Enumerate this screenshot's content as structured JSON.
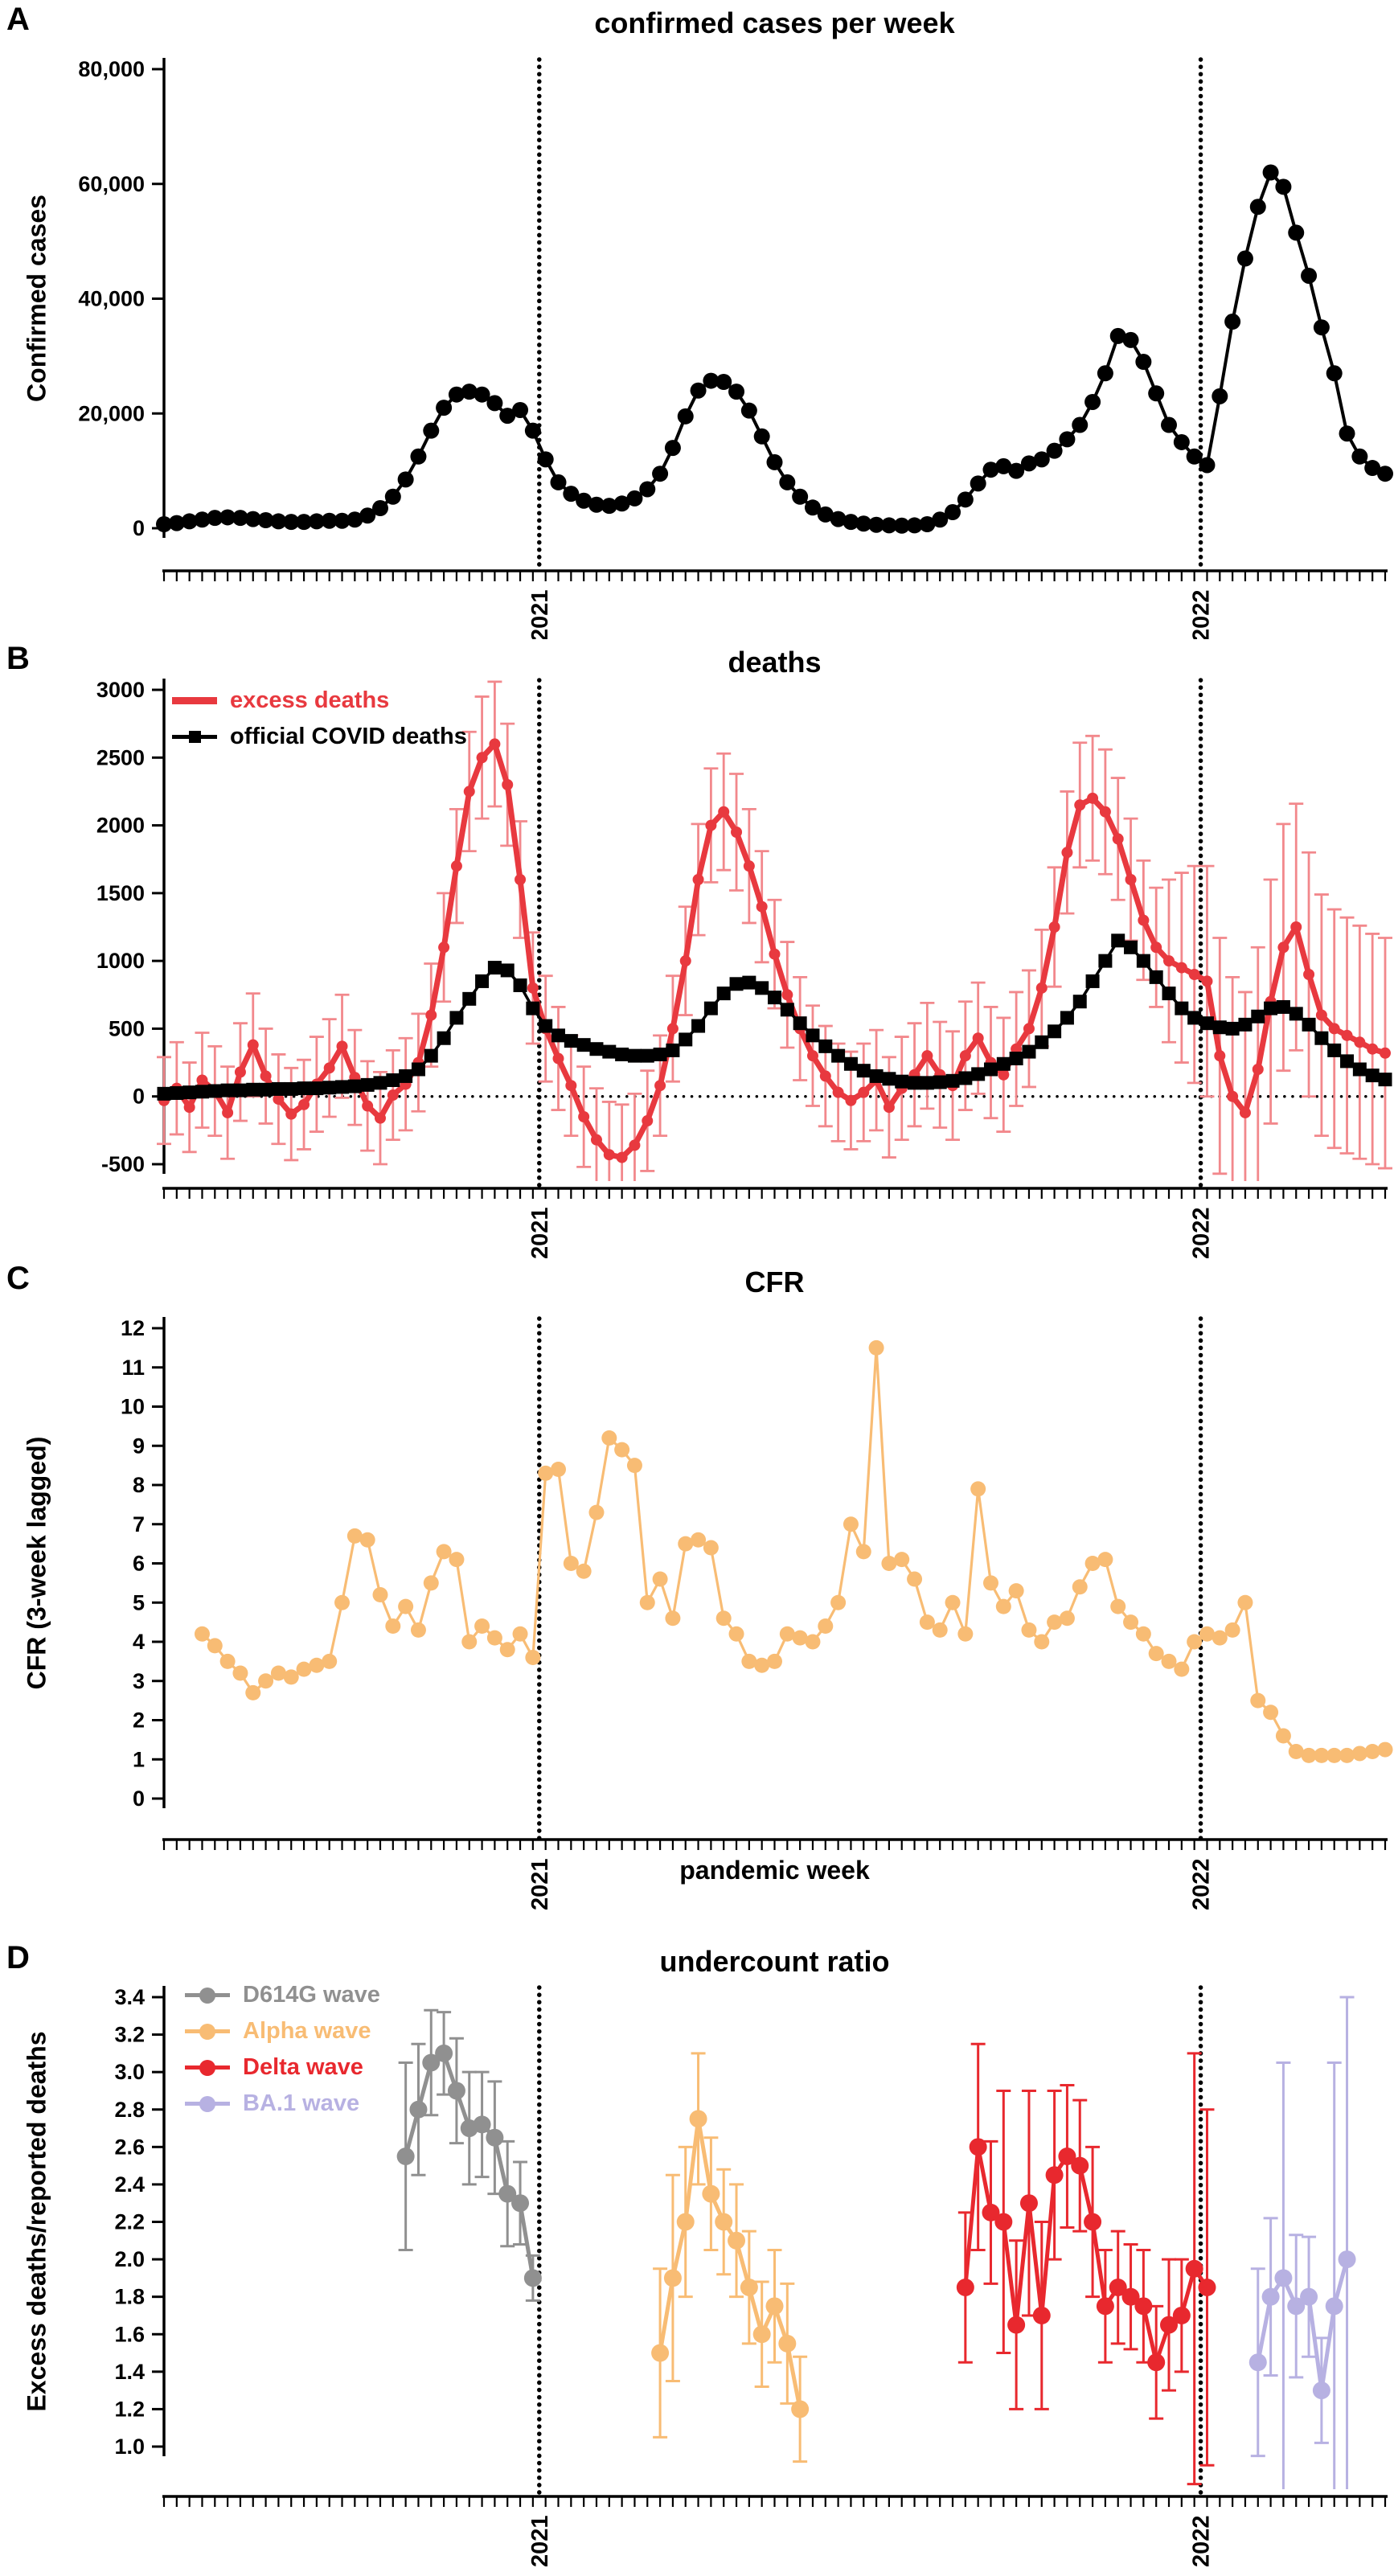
{
  "x_axis": {
    "weeks_total": 97,
    "axis_unit": "pandemic week",
    "year_lines": [
      {
        "week": 30.5,
        "label": "2021"
      },
      {
        "week": 82.5,
        "label": "2022"
      }
    ]
  },
  "chart_data": [
    {
      "panel": "A",
      "type": "line",
      "title": "confirmed cases per week",
      "ylabel": "Confirmed cases",
      "ylim": [
        0,
        80000
      ],
      "yticks": [
        0,
        20000,
        40000,
        60000,
        80000
      ],
      "ytick_labels": [
        "0",
        "20,000",
        "40,000",
        "60,000",
        "80,000"
      ],
      "x_start": 1,
      "series": [
        {
          "name": "confirmed cases",
          "color": "#000000",
          "marker": "circle",
          "values": [
            700,
            900,
            1200,
            1500,
            1800,
            1900,
            1800,
            1600,
            1400,
            1200,
            1100,
            1100,
            1200,
            1300,
            1300,
            1500,
            2200,
            3500,
            5500,
            8500,
            12500,
            17000,
            21000,
            23300,
            23800,
            23300,
            21800,
            19600,
            20600,
            17000,
            12000,
            8000,
            6000,
            4800,
            4100,
            3900,
            4300,
            5200,
            6800,
            9500,
            14000,
            19500,
            24000,
            25700,
            25500,
            23800,
            20500,
            16000,
            11500,
            8000,
            5500,
            3600,
            2400,
            1600,
            1100,
            800,
            600,
            500,
            450,
            500,
            700,
            1500,
            2800,
            5000,
            7800,
            10200,
            10800,
            10000,
            11300,
            12000,
            13500,
            15500,
            18000,
            22000,
            27000,
            33500,
            32800,
            29000,
            23500,
            18000,
            15000,
            12500,
            11000,
            23000,
            36000,
            47000,
            56000,
            62000,
            59500,
            51500,
            44000,
            35000,
            27000,
            16500,
            12500,
            10500,
            9500
          ]
        }
      ]
    },
    {
      "panel": "B",
      "type": "line",
      "title": "deaths",
      "ylabel": "",
      "ylim": [
        -500,
        3000
      ],
      "yticks": [
        -500,
        0,
        500,
        1000,
        1500,
        2000,
        2500,
        3000
      ],
      "ytick_labels": [
        "-500",
        "0",
        "500",
        "1000",
        "1500",
        "2000",
        "2500",
        "3000"
      ],
      "hline": 0,
      "x_start": 1,
      "series": [
        {
          "name": "excess deaths",
          "color": "#e8393f",
          "error_color": "#f2888c",
          "marker": "circle",
          "values": [
            -30,
            60,
            -80,
            120,
            40,
            -120,
            180,
            380,
            150,
            -20,
            -130,
            -60,
            90,
            210,
            370,
            140,
            -70,
            -160,
            10,
            90,
            250,
            600,
            1100,
            1700,
            2250,
            2500,
            2600,
            2300,
            1600,
            800,
            500,
            280,
            80,
            -150,
            -320,
            -430,
            -450,
            -360,
            -180,
            80,
            500,
            1000,
            1600,
            2000,
            2100,
            1950,
            1700,
            1400,
            1050,
            750,
            500,
            300,
            150,
            30,
            -30,
            30,
            120,
            -80,
            60,
            160,
            300,
            160,
            80,
            300,
            430,
            250,
            160,
            350,
            500,
            800,
            1250,
            1800,
            2150,
            2200,
            2100,
            1900,
            1600,
            1300,
            1100,
            1000,
            950,
            900,
            850,
            300,
            0,
            -120,
            200,
            700,
            1100,
            1250,
            900,
            600,
            500,
            450,
            400,
            350,
            320
          ],
          "errors": [
            320,
            340,
            330,
            350,
            330,
            340,
            360,
            380,
            350,
            330,
            340,
            330,
            350,
            360,
            380,
            350,
            330,
            340,
            330,
            340,
            360,
            380,
            400,
            420,
            440,
            450,
            460,
            450,
            430,
            410,
            390,
            380,
            370,
            370,
            380,
            390,
            390,
            380,
            370,
            370,
            390,
            400,
            410,
            420,
            430,
            430,
            420,
            410,
            400,
            390,
            380,
            370,
            370,
            360,
            360,
            360,
            370,
            370,
            380,
            380,
            390,
            390,
            400,
            400,
            410,
            410,
            420,
            420,
            430,
            430,
            440,
            450,
            460,
            460,
            460,
            450,
            450,
            440,
            440,
            600,
            700,
            800,
            850,
            870,
            880,
            890,
            900,
            900,
            910,
            910,
            900,
            890,
            880,
            870,
            860,
            850,
            850
          ]
        },
        {
          "name": "official COVID deaths",
          "color": "#000000",
          "marker": "square",
          "values": [
            20,
            25,
            30,
            35,
            40,
            45,
            45,
            50,
            50,
            55,
            55,
            60,
            60,
            65,
            70,
            75,
            85,
            100,
            120,
            150,
            200,
            300,
            430,
            580,
            720,
            850,
            950,
            930,
            820,
            650,
            520,
            450,
            410,
            380,
            350,
            330,
            310,
            300,
            300,
            310,
            340,
            420,
            520,
            650,
            760,
            830,
            840,
            800,
            730,
            640,
            540,
            450,
            370,
            300,
            240,
            190,
            150,
            130,
            110,
            100,
            100,
            105,
            115,
            135,
            165,
            200,
            240,
            280,
            330,
            400,
            480,
            580,
            700,
            850,
            1000,
            1150,
            1100,
            1000,
            880,
            760,
            650,
            580,
            540,
            510,
            500,
            530,
            590,
            650,
            660,
            610,
            530,
            430,
            340,
            260,
            200,
            155,
            125
          ]
        }
      ]
    },
    {
      "panel": "C",
      "type": "line",
      "title": "CFR",
      "ylabel": "CFR (3-week lagged)",
      "xlabel": "pandemic week",
      "ylim": [
        0,
        12
      ],
      "yticks": [
        0,
        1,
        2,
        3,
        4,
        5,
        6,
        7,
        8,
        9,
        10,
        11,
        12
      ],
      "ytick_labels": [
        "0",
        "1",
        "2",
        "3",
        "4",
        "5",
        "6",
        "7",
        "8",
        "9",
        "10",
        "11",
        "12"
      ],
      "x_start": 4,
      "series": [
        {
          "name": "CFR",
          "color": "#f8bc74",
          "marker": "circle",
          "values": [
            4.2,
            3.9,
            3.5,
            3.2,
            2.7,
            3.0,
            3.2,
            3.1,
            3.3,
            3.4,
            3.5,
            5.0,
            6.7,
            6.6,
            5.2,
            4.4,
            4.9,
            4.3,
            5.5,
            6.3,
            6.1,
            4.0,
            4.4,
            4.1,
            3.8,
            4.2,
            3.6,
            8.3,
            8.4,
            6.0,
            5.8,
            7.3,
            9.2,
            8.9,
            8.5,
            5.0,
            5.6,
            4.6,
            6.5,
            6.6,
            6.4,
            4.6,
            4.2,
            3.5,
            3.4,
            3.5,
            4.2,
            4.1,
            4.0,
            4.4,
            5.0,
            7.0,
            6.3,
            11.5,
            6.0,
            6.1,
            5.6,
            4.5,
            4.3,
            5.0,
            4.2,
            7.9,
            5.5,
            4.9,
            5.3,
            4.3,
            4.0,
            4.5,
            4.6,
            5.4,
            6.0,
            6.1,
            4.9,
            4.5,
            4.2,
            3.7,
            3.5,
            3.3,
            4.0,
            4.2,
            4.1,
            4.3,
            5.0,
            2.5,
            2.2,
            1.6,
            1.2,
            1.1,
            1.1,
            1.1,
            1.1,
            1.15,
            1.2,
            1.25
          ]
        }
      ]
    },
    {
      "panel": "D",
      "type": "line",
      "title": "undercount ratio",
      "ylabel": "Excess deaths/reported deaths",
      "ylim": [
        1.0,
        3.4
      ],
      "yticks": [
        1.0,
        1.2,
        1.4,
        1.6,
        1.8,
        2.0,
        2.2,
        2.4,
        2.6,
        2.8,
        3.0,
        3.2,
        3.4
      ],
      "ytick_labels": [
        "1.0",
        "1.2",
        "1.4",
        "1.6",
        "1.8",
        "2.0",
        "2.2",
        "2.4",
        "2.6",
        "2.8",
        "3.0",
        "3.2",
        "3.4"
      ],
      "series": [
        {
          "name": "D614G wave",
          "color": "#909090",
          "marker": "circle",
          "x_start": 20,
          "values": [
            2.55,
            2.8,
            3.05,
            3.1,
            2.9,
            2.7,
            2.72,
            2.65,
            2.35,
            2.3,
            1.9
          ],
          "errors": [
            0.5,
            0.35,
            0.28,
            0.22,
            0.28,
            0.3,
            0.28,
            0.3,
            0.28,
            0.22,
            0.12
          ]
        },
        {
          "name": "Alpha wave",
          "color": "#f8bc74",
          "marker": "circle",
          "x_start": 40,
          "values": [
            1.5,
            1.9,
            2.2,
            2.75,
            2.35,
            2.2,
            2.1,
            1.85,
            1.6,
            1.75,
            1.55,
            1.2
          ],
          "errors": [
            0.45,
            0.55,
            0.4,
            0.35,
            0.3,
            0.28,
            0.3,
            0.3,
            0.28,
            0.3,
            0.32,
            0.28
          ]
        },
        {
          "name": "Delta wave",
          "color": "#e8282e",
          "marker": "circle",
          "x_start": 64,
          "values": [
            1.85,
            2.6,
            2.25,
            2.2,
            1.65,
            2.3,
            1.7,
            2.45,
            2.55,
            2.5,
            2.2,
            1.75,
            1.85,
            1.8,
            1.75,
            1.45,
            1.65,
            1.7,
            1.95,
            1.85
          ],
          "errors": [
            0.4,
            0.55,
            0.38,
            0.7,
            0.45,
            0.6,
            0.5,
            0.45,
            0.38,
            0.35,
            0.4,
            0.3,
            0.3,
            0.28,
            0.3,
            0.3,
            0.35,
            0.3,
            1.15,
            0.95
          ]
        },
        {
          "name": "BA.1 wave",
          "color": "#b7b1e2",
          "marker": "circle",
          "x_start": 87,
          "values": [
            1.45,
            1.8,
            1.9,
            1.75,
            1.8,
            1.3,
            1.75,
            2.0
          ],
          "errors": [
            0.5,
            0.42,
            1.15,
            0.38,
            0.32,
            0.28,
            1.3,
            1.4
          ]
        }
      ]
    }
  ]
}
